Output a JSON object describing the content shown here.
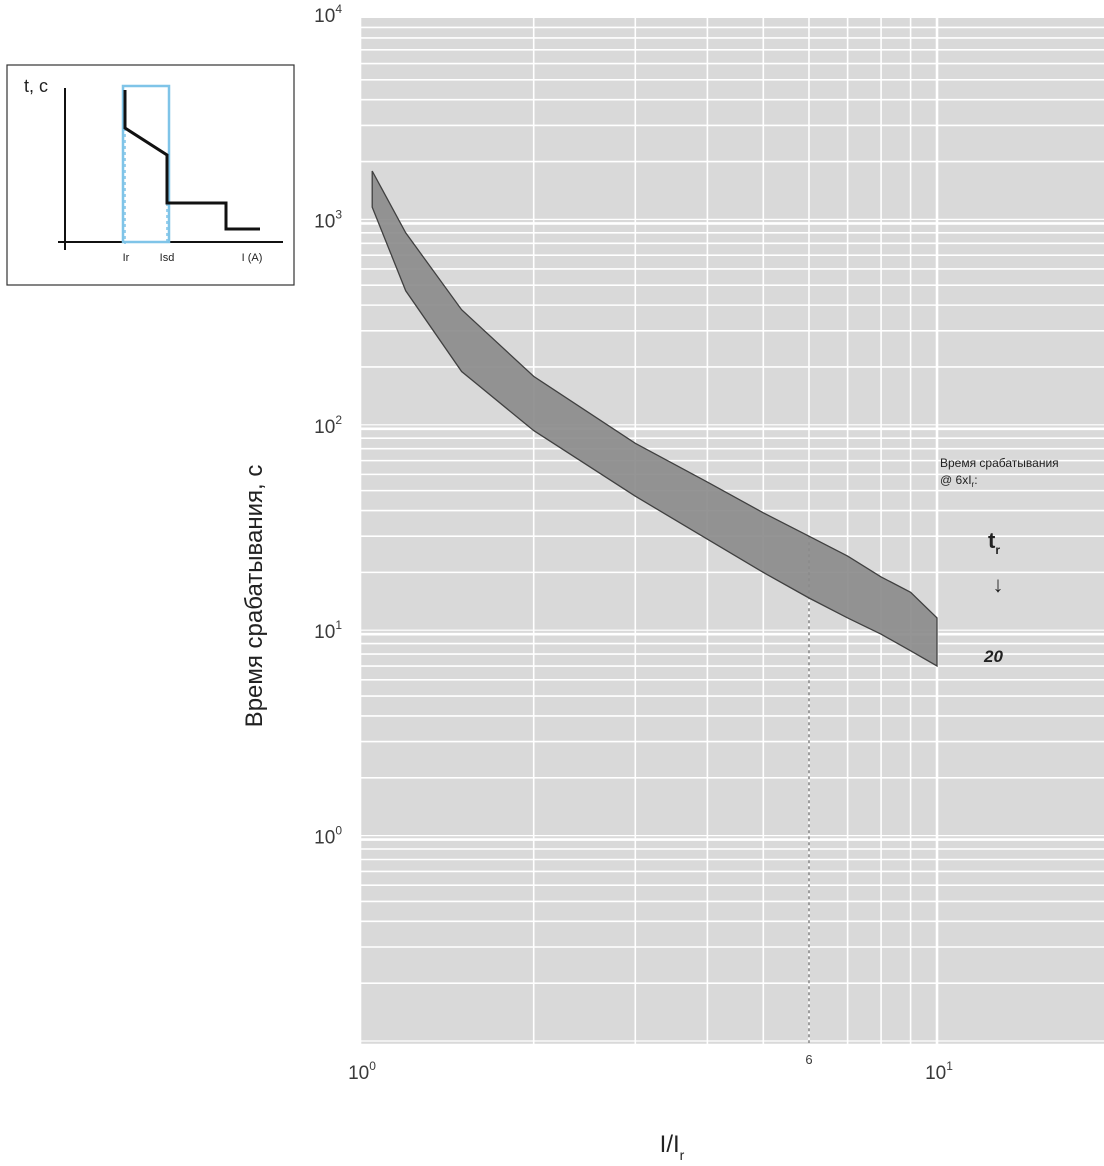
{
  "chart_data": {
    "type": "area",
    "title": "",
    "xlabel": "I/I",
    "xlabel_sub": "r",
    "ylabel": "Время срабатывания, с",
    "x_scale": "log",
    "y_scale": "log",
    "xlim": [
      1,
      20
    ],
    "ylim": [
      0.1,
      10000
    ],
    "x_ticks": [
      {
        "value": 1,
        "base": "10",
        "exp": "0"
      },
      {
        "value": 10,
        "base": "10",
        "exp": "1"
      }
    ],
    "y_ticks": [
      {
        "value": 1,
        "base": "10",
        "exp": "0"
      },
      {
        "value": 10,
        "base": "10",
        "exp": "1"
      },
      {
        "value": 100,
        "base": "10",
        "exp": "2"
      },
      {
        "value": 1000,
        "base": "10",
        "exp": "3"
      },
      {
        "value": 10000,
        "base": "10",
        "exp": "4"
      }
    ],
    "grid": true,
    "series": [
      {
        "name": "20",
        "upper": [
          [
            1.05,
            1800
          ],
          [
            1.2,
            900
          ],
          [
            1.5,
            380
          ],
          [
            2.0,
            180
          ],
          [
            3.0,
            85
          ],
          [
            4.0,
            55
          ],
          [
            5.0,
            39
          ],
          [
            6.0,
            30
          ],
          [
            7.0,
            24
          ],
          [
            8.0,
            19
          ],
          [
            9.0,
            16
          ],
          [
            10.0,
            12
          ]
        ],
        "lower": [
          [
            10.0,
            7.0
          ],
          [
            9.0,
            8.3
          ],
          [
            8.0,
            10
          ],
          [
            7.0,
            12
          ],
          [
            6.0,
            15
          ],
          [
            5.0,
            20
          ],
          [
            4.0,
            29
          ],
          [
            3.0,
            47
          ],
          [
            2.0,
            98
          ],
          [
            1.5,
            190
          ],
          [
            1.2,
            470
          ],
          [
            1.05,
            1200
          ]
        ]
      }
    ],
    "reference_line": {
      "x": 6,
      "label": "6"
    },
    "annotation": {
      "line1": "Время срабатывания",
      "line2_prefix": "@ 6xI",
      "line2_sub": "r",
      "line2_suffix": ":",
      "param": "t",
      "param_sub": "r",
      "arrow": "↓",
      "value": "20"
    }
  },
  "inset": {
    "y_label": "t, c",
    "x_labels": [
      "Ir",
      "Isd",
      "I (A)"
    ]
  },
  "colors": {
    "plot_bg": "#d9d9d9",
    "grid": "#ffffff",
    "band_fill": "#8a8a8a",
    "band_stroke": "#404040",
    "highlight": "#7fc4e8"
  }
}
